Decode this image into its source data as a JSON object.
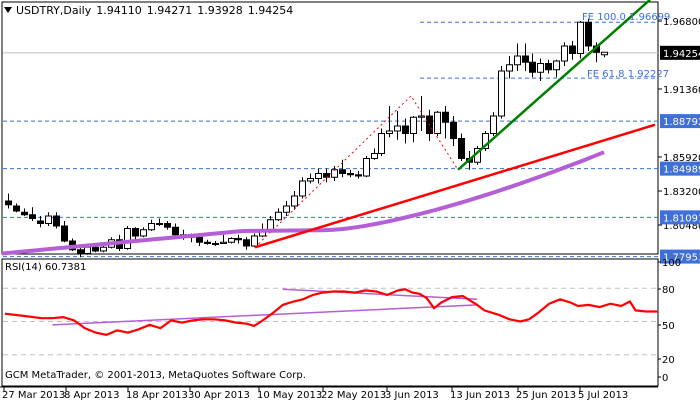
{
  "header": {
    "symbol": "USDTRY,Daily",
    "open": "1.94110",
    "high": "1.94271",
    "low": "1.93928",
    "close": "1.94254"
  },
  "rsi_panel": {
    "label": "RSI(14) 60.7381",
    "levels": [
      "100",
      "80",
      "50",
      "20",
      "0"
    ]
  },
  "copyright": "GCM MetaTrader, © 2001-2013, MetaQuotes Software Corp.",
  "annotations": {
    "fe100": "FE 100.0 1.96699",
    "fe618": "FE 61.8 1.92227"
  },
  "colors": {
    "bull_body": "#ffffff",
    "bear_body": "#000000",
    "ma": "#b45fd6",
    "trend_red": "#ff0000",
    "trend_green": "#007f00",
    "hline": "#3f6fd8",
    "price_tag": "#3f6fd8",
    "current_tag": "#000000",
    "rsi_line": "#ff0000",
    "rsi_trend": "#b45fd6",
    "grid": "#c0c0c0"
  },
  "chart_data": [
    {
      "type": "candlestick",
      "title": "USDTRY,Daily",
      "x_ticks": [
        "27 Mar 2013",
        "8 Apr 2013",
        "18 Apr 2013",
        "30 Apr 2013",
        "10 May 2013",
        "22 May 2013",
        "3 Jun 2013",
        "13 Jun 2013",
        "25 Jun 2013",
        "5 Jul 2013"
      ],
      "y_ticks": [
        "1.96800",
        "1.94254",
        "1.91360",
        "1.88792",
        "1.85920",
        "1.84989",
        "1.83200",
        "1.81091",
        "1.80480",
        "1.77953"
      ],
      "ylim": [
        1.775,
        1.985
      ],
      "current_price": "1.94254",
      "horizontal_levels": [
        "1.96699",
        "1.92227",
        "1.88792",
        "1.84989",
        "1.81091",
        "1.77953"
      ],
      "price_tags": [
        {
          "value": "1.94254",
          "style": "current"
        },
        {
          "value": "1.88792",
          "style": "level"
        },
        {
          "value": "1.84989",
          "style": "level"
        },
        {
          "value": "1.81091",
          "style": "level"
        },
        {
          "value": "1.77953",
          "style": "level"
        }
      ],
      "axis_labels": [
        {
          "value": "1.96800"
        },
        {
          "value": "1.91360"
        },
        {
          "value": "1.85920"
        },
        {
          "value": "1.83200"
        },
        {
          "value": "1.80480"
        }
      ],
      "candles": [
        [
          1.824,
          1.83,
          1.818,
          1.821
        ],
        [
          1.82,
          1.822,
          1.815,
          1.816
        ],
        [
          1.815,
          1.818,
          1.812,
          1.813
        ],
        [
          1.813,
          1.819,
          1.808,
          1.81
        ],
        [
          1.808,
          1.812,
          1.803,
          1.806
        ],
        [
          1.806,
          1.815,
          1.804,
          1.812
        ],
        [
          1.812,
          1.815,
          1.802,
          1.804
        ],
        [
          1.804,
          1.808,
          1.791,
          1.792
        ],
        [
          1.792,
          1.794,
          1.784,
          1.785
        ],
        [
          1.785,
          1.789,
          1.779,
          1.782
        ],
        [
          1.782,
          1.789,
          1.781,
          1.787
        ],
        [
          1.787,
          1.79,
          1.783,
          1.784
        ],
        [
          1.784,
          1.788,
          1.783,
          1.787
        ],
        [
          1.787,
          1.795,
          1.786,
          1.793
        ],
        [
          1.793,
          1.797,
          1.784,
          1.786
        ],
        [
          1.786,
          1.804,
          1.785,
          1.802
        ],
        [
          1.802,
          1.803,
          1.793,
          1.796
        ],
        [
          1.796,
          1.803,
          1.795,
          1.801
        ],
        [
          1.801,
          1.809,
          1.8,
          1.806
        ],
        [
          1.806,
          1.81,
          1.804,
          1.806
        ],
        [
          1.806,
          1.808,
          1.801,
          1.803
        ],
        [
          1.803,
          1.806,
          1.795,
          1.797
        ],
        [
          1.797,
          1.801,
          1.793,
          1.797
        ],
        [
          1.797,
          1.798,
          1.791,
          1.795
        ],
        [
          1.795,
          1.796,
          1.788,
          1.791
        ],
        [
          1.791,
          1.793,
          1.789,
          1.79
        ],
        [
          1.79,
          1.792,
          1.788,
          1.79
        ],
        [
          1.79,
          1.797,
          1.79,
          1.791
        ],
        [
          1.791,
          1.795,
          1.79,
          1.794
        ],
        [
          1.794,
          1.797,
          1.79,
          1.793
        ],
        [
          1.793,
          1.795,
          1.785,
          1.788
        ],
        [
          1.788,
          1.798,
          1.787,
          1.796
        ],
        [
          1.796,
          1.806,
          1.795,
          1.8
        ],
        [
          1.8,
          1.812,
          1.799,
          1.809
        ],
        [
          1.809,
          1.818,
          1.808,
          1.815
        ],
        [
          1.815,
          1.824,
          1.812,
          1.82
        ],
        [
          1.82,
          1.832,
          1.817,
          1.828
        ],
        [
          1.828,
          1.843,
          1.826,
          1.84
        ],
        [
          1.84,
          1.846,
          1.838,
          1.842
        ],
        [
          1.842,
          1.85,
          1.838,
          1.846
        ],
        [
          1.846,
          1.85,
          1.839,
          1.843
        ],
        [
          1.843,
          1.852,
          1.84,
          1.849
        ],
        [
          1.849,
          1.857,
          1.843,
          1.846
        ],
        [
          1.846,
          1.849,
          1.843,
          1.845
        ],
        [
          1.845,
          1.848,
          1.842,
          1.844
        ],
        [
          1.844,
          1.86,
          1.843,
          1.858
        ],
        [
          1.858,
          1.866,
          1.857,
          1.862
        ],
        [
          1.862,
          1.882,
          1.86,
          1.878
        ],
        [
          1.878,
          1.9,
          1.875,
          1.88
        ],
        [
          1.88,
          1.896,
          1.873,
          1.884
        ],
        [
          1.884,
          1.89,
          1.87,
          1.878
        ],
        [
          1.878,
          1.892,
          1.871,
          1.891
        ],
        [
          1.891,
          1.908,
          1.88,
          1.892
        ],
        [
          1.892,
          1.897,
          1.872,
          1.878
        ],
        [
          1.878,
          1.896,
          1.876,
          1.895
        ],
        [
          1.895,
          1.9,
          1.874,
          1.887
        ],
        [
          1.887,
          1.892,
          1.868,
          1.874
        ],
        [
          1.874,
          1.878,
          1.856,
          1.858
        ],
        [
          1.858,
          1.864,
          1.849,
          1.855
        ],
        [
          1.855,
          1.868,
          1.853,
          1.866
        ],
        [
          1.866,
          1.88,
          1.864,
          1.878
        ],
        [
          1.878,
          1.895,
          1.876,
          1.892
        ],
        [
          1.892,
          1.932,
          1.89,
          1.928
        ],
        [
          1.928,
          1.94,
          1.922,
          1.933
        ],
        [
          1.933,
          1.95,
          1.928,
          1.94
        ],
        [
          1.94,
          1.95,
          1.928,
          1.935
        ],
        [
          1.935,
          1.942,
          1.923,
          1.927
        ],
        [
          1.927,
          1.938,
          1.92,
          1.934
        ],
        [
          1.934,
          1.937,
          1.926,
          1.929
        ],
        [
          1.929,
          1.937,
          1.923,
          1.936
        ],
        [
          1.936,
          1.951,
          1.932,
          1.948
        ],
        [
          1.948,
          1.952,
          1.937,
          1.942
        ],
        [
          1.942,
          1.968,
          1.938,
          1.967
        ],
        [
          1.967,
          1.97,
          1.944,
          1.948
        ],
        [
          1.948,
          1.951,
          1.935,
          1.943
        ],
        [
          1.941,
          1.943,
          1.939,
          1.943
        ]
      ],
      "moving_average": {
        "start": [
          2,
          1.782
        ],
        "end": [
          604,
          1.863
        ]
      },
      "trendlines": [
        {
          "color": "red",
          "from": [
            255,
            1.787
          ],
          "to": [
            655,
            1.885
          ]
        },
        {
          "color": "green",
          "from": [
            458,
            1.849
          ],
          "to": [
            650,
            1.985
          ]
        }
      ]
    },
    {
      "type": "line",
      "title": "RSI(14) 60.7381",
      "ylim": [
        0,
        100
      ],
      "y_ticks": [
        "100",
        "80",
        "50",
        "20",
        "0"
      ],
      "grid_levels": [
        80,
        50,
        20
      ],
      "value": 60.7381,
      "series": [
        {
          "name": "RSI(14)",
          "points": [
            [
              4,
              57
            ],
            [
              30,
              55
            ],
            [
              55,
              53
            ],
            [
              70,
              53
            ],
            [
              85,
              54
            ],
            [
              100,
              51
            ],
            [
              115,
              44
            ],
            [
              130,
              40
            ],
            [
              145,
              38
            ],
            [
              160,
              42
            ],
            [
              175,
              40
            ],
            [
              190,
              43
            ],
            [
              205,
              47
            ],
            [
              220,
              44
            ],
            [
              235,
              51
            ],
            [
              250,
              49
            ],
            [
              265,
              51
            ],
            [
              280,
              52
            ],
            [
              295,
              52
            ],
            [
              310,
              51
            ],
            [
              325,
              49
            ],
            [
              340,
              48
            ],
            [
              350,
              46
            ],
            [
              360,
              50
            ],
            [
              375,
              57
            ],
            [
              390,
              65
            ],
            [
              405,
              68
            ],
            [
              418,
              70
            ],
            [
              432,
              74
            ],
            [
              445,
              76
            ],
            [
              460,
              77
            ],
            [
              475,
              77
            ],
            [
              490,
              76
            ],
            [
              505,
              78
            ],
            [
              520,
              77
            ],
            [
              535,
              74
            ],
            [
              550,
              78
            ],
            [
              560,
              79
            ],
            [
              570,
              76
            ],
            [
              580,
              75
            ],
            [
              590,
              71
            ],
            [
              600,
              62
            ],
            [
              610,
              67
            ],
            [
              625,
              72
            ],
            [
              640,
              73
            ],
            [
              650,
              69
            ],
            [
              660,
              65
            ],
            [
              670,
              60
            ],
            [
              690,
              56
            ],
            [
              705,
              52
            ],
            [
              720,
              50
            ],
            [
              732,
              52
            ],
            [
              745,
              58
            ],
            [
              760,
              66
            ],
            [
              775,
              70
            ],
            [
              790,
              67
            ],
            [
              800,
              64
            ],
            [
              815,
              65
            ],
            [
              830,
              63
            ],
            [
              845,
              66
            ],
            [
              860,
              64
            ],
            [
              872,
              68
            ],
            [
              880,
              60
            ],
            [
              895,
              59
            ],
            [
              910,
              59
            ]
          ]
        }
      ],
      "trendlines": [
        {
          "from": [
            70,
            47
          ],
          "to": [
            660,
            65
          ]
        },
        {
          "from": [
            390,
            79
          ],
          "to": [
            660,
            70
          ]
        }
      ]
    }
  ]
}
